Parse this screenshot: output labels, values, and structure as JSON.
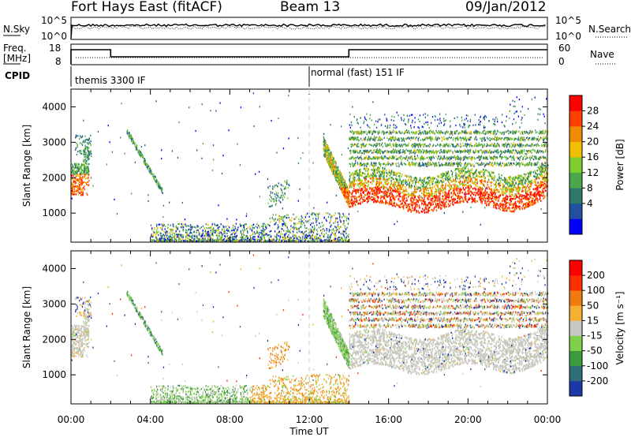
{
  "header": {
    "station": "Fort Hays East (fitACF)",
    "beam": "Beam 13",
    "date": "09/Jan/2012"
  },
  "noise_panel": {
    "left_label": "N.Sky",
    "right_label": "N.Search",
    "y_ticks": [
      "10^5",
      "10^0"
    ],
    "y_ticks_right": [
      "10^5",
      "10^0"
    ]
  },
  "freq_panel": {
    "left_label_1": "Freq.",
    "left_label_2": "[MHz]",
    "right_label": "Nave",
    "y_ticks_left": [
      "18",
      "8"
    ],
    "y_ticks_right": [
      "60",
      "0"
    ],
    "freq_steps": [
      {
        "start_h": 0.0,
        "end_h": 2.0,
        "level": 16.5
      },
      {
        "start_h": 2.0,
        "end_h": 14.0,
        "level": 12.0
      },
      {
        "start_h": 14.0,
        "end_h": 24.0,
        "level": 16.5
      }
    ]
  },
  "cpid": {
    "label": "CPID",
    "segments": [
      {
        "start_h": 0.0,
        "text": "themis 3300 IF"
      },
      {
        "start_h": 12.0,
        "text": "normal (fast) 151 IF"
      }
    ]
  },
  "chart_data": [
    {
      "type": "heatmap",
      "name": "power",
      "ylabel": "Slant Range [km]",
      "ylim": [
        180,
        4500
      ],
      "y_ticks": [
        1000,
        2000,
        3000,
        4000
      ],
      "colorbar_label": "Power [dB]",
      "colorbar_ticks": [
        "28",
        "24",
        "20",
        "16",
        "12",
        "8",
        "4"
      ],
      "colors": [
        "#0000ff",
        "#2350a0",
        "#2e7a6a",
        "#4aa84a",
        "#7ccf2a",
        "#f0c000",
        "#f08a00",
        "#ff4000",
        "#ff0000"
      ]
    },
    {
      "type": "heatmap",
      "name": "velocity",
      "ylabel": "Slant Range [km]",
      "ylim": [
        180,
        4500
      ],
      "y_ticks": [
        1000,
        2000,
        3000,
        4000
      ],
      "colorbar_label": "Velocity [m s⁻¹]",
      "colorbar_ticks": [
        "200",
        "100",
        "50",
        "15",
        "-15",
        "-50",
        "-100",
        "-200"
      ],
      "colors": [
        "#1c38a8",
        "#2e6e78",
        "#3b9a3b",
        "#7fd14a",
        "#c8c8c0",
        "#f4b030",
        "#f07a10",
        "#ff3000",
        "#ff0000"
      ]
    }
  ],
  "x_axis": {
    "label": "Time UT",
    "ticks": [
      "00:00",
      "04:00",
      "08:00",
      "12:00",
      "16:00",
      "20:00",
      "00:00"
    ],
    "xlim_hours": [
      0,
      24
    ]
  },
  "colors": {
    "frame": "#000000",
    "dashed_line": "#c8c8c8"
  }
}
